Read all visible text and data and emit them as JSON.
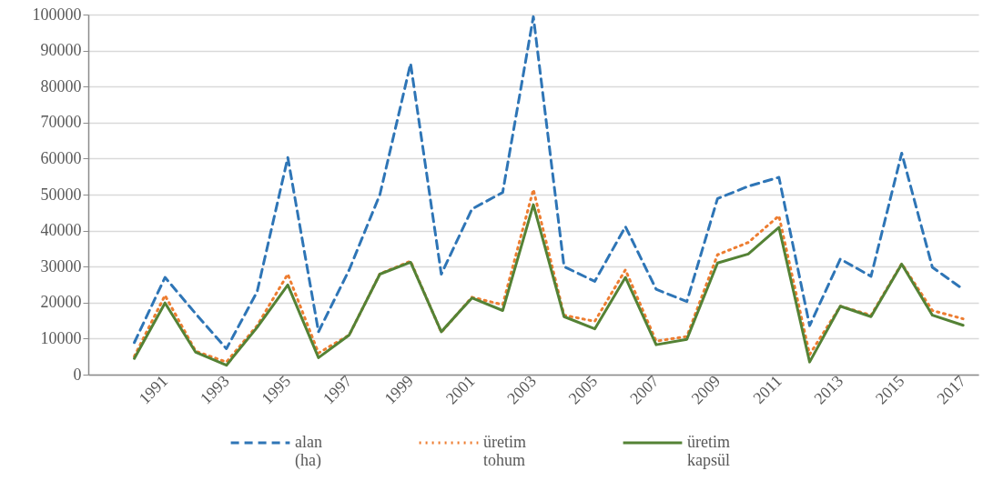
{
  "chart_data": {
    "type": "line",
    "categories": [
      null,
      null,
      "1991",
      null,
      "1993",
      null,
      "1995",
      null,
      "1997",
      null,
      "1999",
      null,
      "2001",
      null,
      "2003",
      null,
      "2005",
      null,
      "2007",
      null,
      "2009",
      null,
      "2011",
      null,
      "2013",
      null,
      "2015",
      null,
      "2017"
    ],
    "series": [
      {
        "name": "alan (ha)",
        "color": "#2e75b6",
        "line_style": "dashed",
        "values": [
          null,
          8900,
          27000,
          16900,
          7200,
          23000,
          60300,
          11900,
          29100,
          50000,
          86400,
          27900,
          46000,
          50600,
          99400,
          30000,
          25900,
          41100,
          23700,
          20300,
          48900,
          52300,
          54800,
          13600,
          32100,
          27300,
          61500,
          29800,
          23700
        ]
      },
      {
        "name": "üretim tohum",
        "color": "#ed7d31",
        "line_style": "dotted",
        "values": [
          null,
          5100,
          22000,
          6500,
          3500,
          13600,
          27900,
          6000,
          11000,
          28000,
          31500,
          11800,
          21500,
          19400,
          51400,
          16500,
          14800,
          29100,
          9300,
          10600,
          33300,
          36700,
          44100,
          5600,
          19000,
          16500,
          30800,
          17800,
          15500
        ]
      },
      {
        "name": "üretim kapsül",
        "color": "#548235",
        "line_style": "solid",
        "values": [
          null,
          4500,
          19900,
          6200,
          2600,
          13100,
          24900,
          4700,
          11000,
          27900,
          31200,
          11900,
          21300,
          17800,
          47200,
          16100,
          12700,
          27000,
          8300,
          9800,
          31000,
          33500,
          40900,
          3500,
          19000,
          16100,
          30700,
          16500,
          13700
        ]
      }
    ],
    "ylim": [
      0,
      100000
    ],
    "yticks": [
      0,
      10000,
      20000,
      30000,
      40000,
      50000,
      60000,
      70000,
      80000,
      90000,
      100000
    ],
    "grid": "y",
    "legend": "bottom"
  }
}
